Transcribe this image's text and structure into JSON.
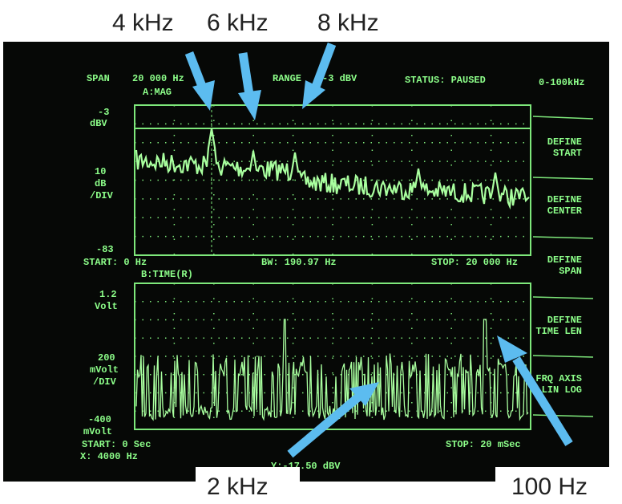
{
  "annotations": {
    "top": [
      "4 kHz",
      "6 kHz",
      "8 kHz"
    ],
    "bottom": [
      "2 kHz",
      "100 Hz"
    ]
  },
  "screen": {
    "header": {
      "span_label": "SPAN",
      "span": "20 000 Hz",
      "range_label": "RANGE",
      "range": "-3 dBV",
      "status": "STATUS: PAUSED",
      "band": "0-100kHz"
    },
    "upper": {
      "name": "A:MAG",
      "top": "-3",
      "top_unit": "dBV",
      "scale": "10",
      "scale_unit": "dB",
      "scale_div": "/DIV",
      "bottom": "-83",
      "start": "START: 0 Hz",
      "bw": "BW: 190.97 Hz",
      "stop": "STOP: 20 000 Hz"
    },
    "lower": {
      "name": "B:TIME(R)",
      "top": "1.2",
      "top_unit": "Volt",
      "scale": "200",
      "scale_unit": "mVolt",
      "scale_div": "/DIV",
      "bottom": "-400",
      "bottom_unit": "mVolt",
      "start": "START: 0  Sec",
      "stop": "STOP: 20 mSec"
    },
    "marker": {
      "x": "X: 4000 Hz",
      "y": "Y:-17.50 dBV"
    },
    "softkeys": [
      [
        "DEFINE",
        "START"
      ],
      [
        "DEFINE",
        "CENTER"
      ],
      [
        "DEFINE",
        "SPAN"
      ],
      [
        "DEFINE",
        "TIME LEN"
      ],
      [
        "FRQ AXIS",
        "LIN  LOG"
      ]
    ]
  }
}
